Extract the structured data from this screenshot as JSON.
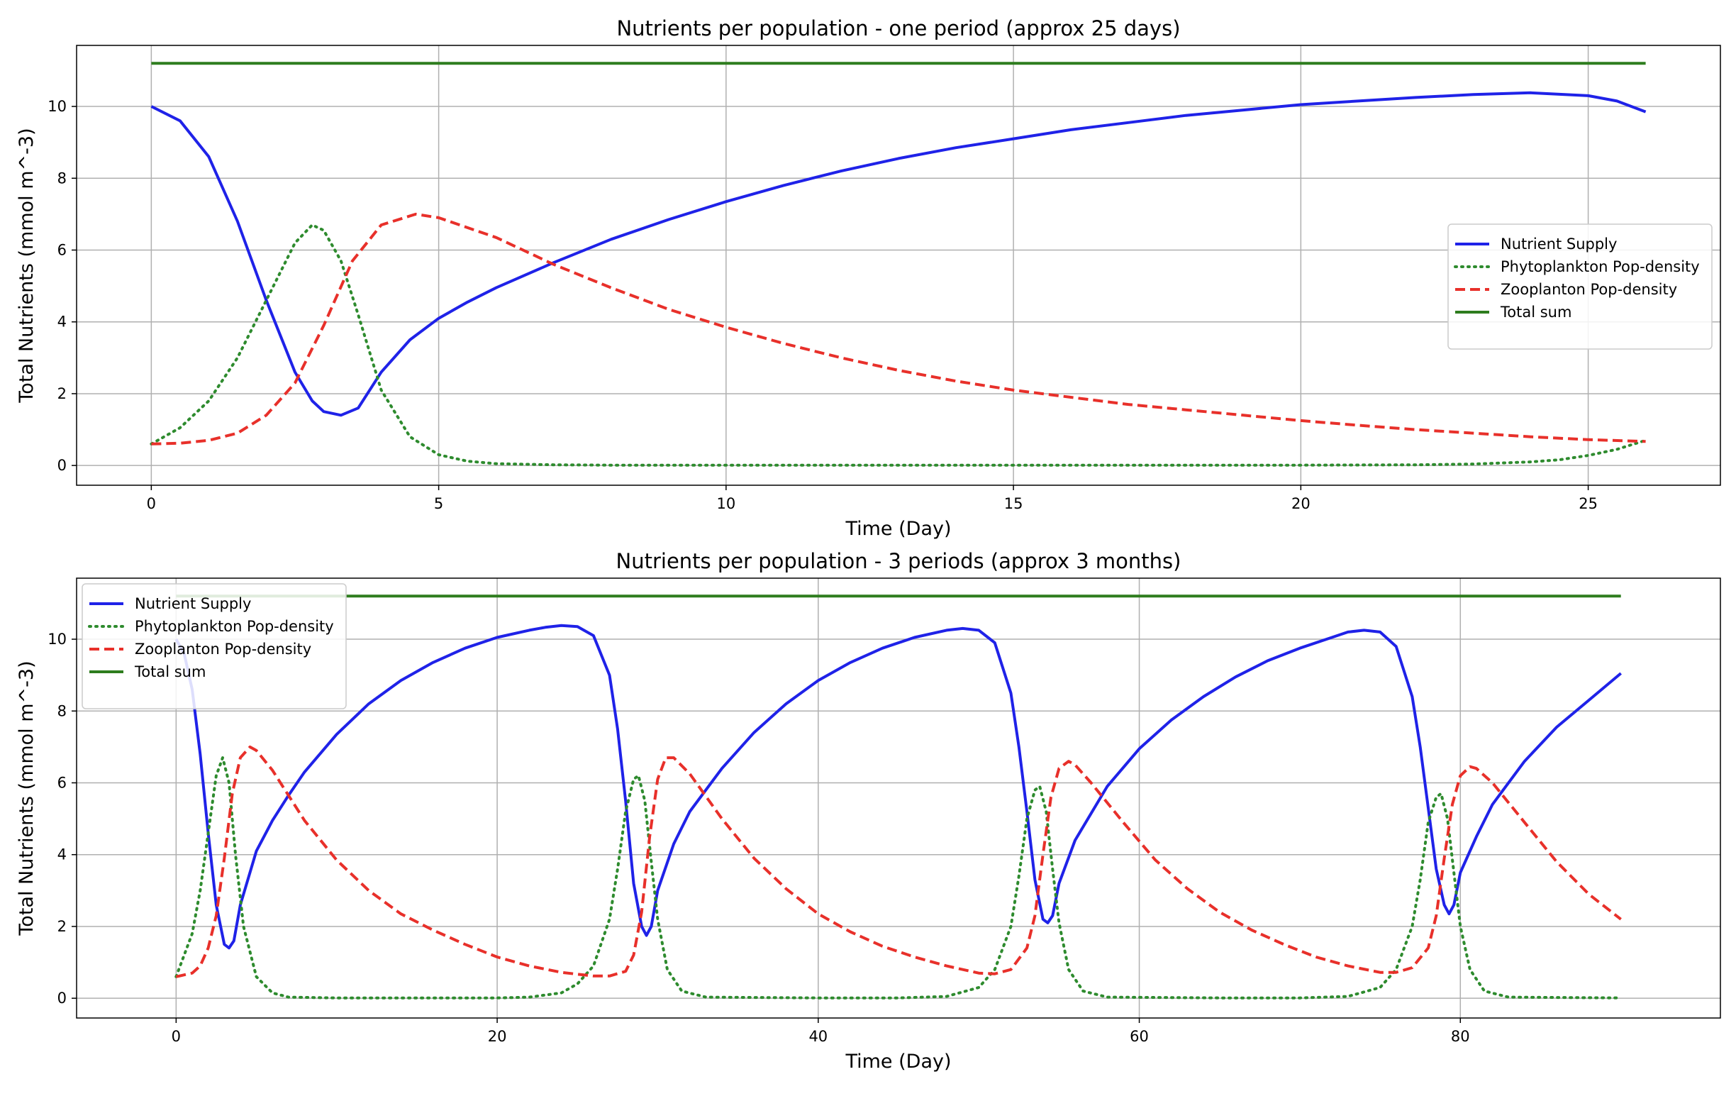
{
  "chart_data": [
    {
      "type": "line",
      "title": "Nutrients per population - one period (approx 25 days)",
      "xlabel": "Time (Day)",
      "ylabel": "Total Nutrients (mmol m^-3)",
      "xlim": [
        -1.3,
        27.3
      ],
      "ylim": [
        -0.55,
        11.7
      ],
      "xticks": [
        0,
        5,
        10,
        15,
        20,
        25
      ],
      "yticks": [
        0,
        2,
        4,
        6,
        8,
        10
      ],
      "grid": true,
      "legend_position": "center-right",
      "series": [
        {
          "name": "Nutrient Supply",
          "color": "#1f22e8",
          "style": "solid",
          "x": [
            0,
            0.5,
            1,
            1.5,
            2,
            2.5,
            2.8,
            3,
            3.3,
            3.6,
            4,
            4.5,
            5,
            5.5,
            6,
            7,
            8,
            9,
            10,
            11,
            12,
            13,
            14,
            15,
            16,
            17,
            18,
            19,
            20,
            21,
            22,
            23,
            24,
            25,
            25.5,
            26
          ],
          "y": [
            10.0,
            9.6,
            8.6,
            6.8,
            4.6,
            2.6,
            1.8,
            1.5,
            1.4,
            1.6,
            2.6,
            3.5,
            4.1,
            4.55,
            4.95,
            5.65,
            6.3,
            6.85,
            7.35,
            7.8,
            8.2,
            8.55,
            8.85,
            9.1,
            9.35,
            9.55,
            9.75,
            9.9,
            10.05,
            10.15,
            10.25,
            10.33,
            10.38,
            10.3,
            10.15,
            9.85
          ]
        },
        {
          "name": "Phytoplankton Pop-density",
          "color": "#2e8b2e",
          "style": "dotted",
          "x": [
            0,
            0.5,
            1,
            1.5,
            2,
            2.5,
            2.8,
            3,
            3.3,
            3.6,
            4,
            4.5,
            5,
            5.5,
            6,
            7,
            8,
            10,
            15,
            20,
            22,
            23,
            24,
            24.5,
            25,
            25.5,
            26
          ],
          "y": [
            0.6,
            1.05,
            1.8,
            3.0,
            4.6,
            6.2,
            6.7,
            6.55,
            5.7,
            4.2,
            2.1,
            0.8,
            0.3,
            0.12,
            0.05,
            0.02,
            0.01,
            0.01,
            0.01,
            0.01,
            0.02,
            0.04,
            0.1,
            0.16,
            0.28,
            0.45,
            0.7
          ]
        },
        {
          "name": "Zooplanton Pop-density",
          "color": "#e8302a",
          "style": "dashed",
          "x": [
            0,
            0.5,
            1,
            1.5,
            2,
            2.5,
            3,
            3.5,
            4,
            4.6,
            5,
            6,
            7,
            8,
            9,
            10,
            11,
            12,
            13,
            14,
            15,
            16,
            17,
            18,
            19,
            20,
            21,
            22,
            23,
            24,
            25,
            26
          ],
          "y": [
            0.6,
            0.62,
            0.7,
            0.9,
            1.4,
            2.3,
            3.9,
            5.7,
            6.7,
            7.0,
            6.9,
            6.35,
            5.6,
            4.95,
            4.35,
            3.85,
            3.4,
            3.0,
            2.65,
            2.35,
            2.1,
            1.9,
            1.7,
            1.55,
            1.4,
            1.25,
            1.12,
            1.0,
            0.9,
            0.8,
            0.72,
            0.67
          ]
        },
        {
          "name": "Total sum",
          "color": "#2e7d1e",
          "style": "solid",
          "x": [
            0,
            26
          ],
          "y": [
            11.2,
            11.2
          ]
        }
      ]
    },
    {
      "type": "line",
      "title": "Nutrients per population - 3 periods (approx 3 months)",
      "xlabel": "Time (Day)",
      "ylabel": "Total Nutrients (mmol m^-3)",
      "xlim": [
        -6.2,
        96.2
      ],
      "ylim": [
        -0.55,
        11.7
      ],
      "xticks": [
        0,
        20,
        40,
        60,
        80
      ],
      "yticks": [
        0,
        2,
        4,
        6,
        8,
        10
      ],
      "grid": true,
      "legend_position": "upper-left",
      "series": [
        {
          "name": "Nutrient Supply",
          "color": "#1f22e8",
          "style": "solid",
          "x": [
            0,
            0.5,
            1,
            1.5,
            2,
            2.5,
            3,
            3.3,
            3.6,
            4,
            5,
            6,
            7,
            8,
            10,
            12,
            14,
            16,
            18,
            20,
            22,
            23,
            24,
            25,
            26,
            27,
            27.5,
            28,
            28.5,
            29,
            29.3,
            29.6,
            30,
            31,
            32,
            34,
            36,
            38,
            40,
            42,
            44,
            46,
            48,
            49,
            50,
            51,
            52,
            52.5,
            53,
            53.5,
            54,
            54.3,
            54.6,
            55,
            56,
            58,
            60,
            62,
            64,
            66,
            68,
            70,
            72,
            73,
            74,
            75,
            76,
            77,
            77.5,
            78,
            78.5,
            79,
            79.3,
            79.6,
            80,
            81,
            82,
            84,
            86,
            88,
            90
          ],
          "y": [
            10.0,
            9.6,
            8.6,
            6.8,
            4.6,
            2.6,
            1.5,
            1.4,
            1.6,
            2.6,
            4.1,
            4.95,
            5.65,
            6.3,
            7.35,
            8.2,
            8.85,
            9.35,
            9.75,
            10.05,
            10.25,
            10.33,
            10.38,
            10.35,
            10.1,
            9.0,
            7.5,
            5.5,
            3.2,
            2.0,
            1.75,
            2.0,
            3.0,
            4.3,
            5.2,
            6.4,
            7.4,
            8.2,
            8.85,
            9.35,
            9.75,
            10.05,
            10.25,
            10.3,
            10.25,
            9.9,
            8.5,
            7.0,
            5.2,
            3.3,
            2.2,
            2.1,
            2.3,
            3.2,
            4.4,
            5.9,
            6.95,
            7.75,
            8.4,
            8.95,
            9.4,
            9.75,
            10.05,
            10.2,
            10.25,
            10.2,
            9.8,
            8.4,
            7.0,
            5.3,
            3.6,
            2.6,
            2.35,
            2.6,
            3.5,
            4.5,
            5.4,
            6.6,
            7.55,
            8.3,
            9.05
          ]
        },
        {
          "name": "Phytoplankton Pop-density",
          "color": "#2e8b2e",
          "style": "dotted",
          "x": [
            0,
            1,
            1.5,
            2,
            2.5,
            2.9,
            3.3,
            3.7,
            4.2,
            5,
            6,
            7,
            10,
            20,
            22,
            24,
            25,
            26,
            27,
            27.5,
            28,
            28.5,
            28.8,
            29.2,
            29.6,
            30,
            30.6,
            31.5,
            33,
            40,
            45,
            48,
            50,
            51,
            52,
            52.5,
            53,
            53.5,
            53.8,
            54.2,
            54.6,
            55,
            55.6,
            56.5,
            58,
            65,
            70,
            73,
            75,
            76,
            77,
            77.5,
            78,
            78.5,
            78.8,
            79.2,
            79.6,
            80,
            80.6,
            81.5,
            83,
            90
          ],
          "y": [
            0.6,
            1.8,
            3.0,
            4.6,
            6.2,
            6.7,
            6.0,
            4.0,
            2.0,
            0.6,
            0.15,
            0.03,
            0.01,
            0.01,
            0.03,
            0.15,
            0.4,
            0.9,
            2.2,
            3.6,
            5.2,
            6.1,
            6.2,
            5.5,
            3.8,
            2.2,
            0.8,
            0.2,
            0.03,
            0.01,
            0.01,
            0.05,
            0.3,
            0.8,
            2.0,
            3.4,
            5.0,
            5.8,
            5.9,
            5.2,
            3.6,
            2.1,
            0.8,
            0.2,
            0.03,
            0.01,
            0.01,
            0.05,
            0.3,
            0.8,
            2.0,
            3.3,
            4.9,
            5.6,
            5.7,
            5.0,
            3.5,
            2.0,
            0.8,
            0.2,
            0.03,
            0.01
          ]
        },
        {
          "name": "Zooplanton Pop-density",
          "color": "#e8302a",
          "style": "dashed",
          "x": [
            0,
            1,
            1.5,
            2,
            2.5,
            3,
            3.5,
            4,
            4.6,
            5,
            6,
            8,
            10,
            12,
            14,
            16,
            18,
            20,
            22,
            24,
            26,
            27,
            28,
            28.5,
            29,
            29.5,
            30,
            30.5,
            31,
            32,
            34,
            36,
            38,
            40,
            42,
            44,
            46,
            48,
            50,
            51,
            52,
            53,
            53.5,
            54,
            54.5,
            55,
            55.6,
            56,
            57,
            59,
            61,
            63,
            65,
            67,
            69,
            71,
            73,
            75,
            76,
            77,
            78,
            78.5,
            79,
            79.5,
            80,
            80.6,
            81,
            82,
            84,
            86,
            88,
            90
          ],
          "y": [
            0.6,
            0.7,
            0.9,
            1.4,
            2.3,
            3.9,
            5.7,
            6.7,
            7.0,
            6.9,
            6.35,
            4.95,
            3.85,
            3.0,
            2.35,
            1.9,
            1.5,
            1.15,
            0.9,
            0.72,
            0.62,
            0.62,
            0.75,
            1.2,
            2.4,
            4.5,
            6.1,
            6.7,
            6.7,
            6.25,
            5.0,
            3.9,
            3.05,
            2.35,
            1.85,
            1.45,
            1.15,
            0.9,
            0.7,
            0.68,
            0.8,
            1.4,
            2.3,
            4.0,
            5.6,
            6.4,
            6.6,
            6.5,
            6.0,
            4.9,
            3.85,
            3.05,
            2.4,
            1.9,
            1.5,
            1.15,
            0.9,
            0.72,
            0.72,
            0.85,
            1.4,
            2.3,
            3.9,
            5.4,
            6.2,
            6.45,
            6.4,
            6.0,
            4.9,
            3.8,
            2.9,
            2.2
          ]
        },
        {
          "name": "Total sum",
          "color": "#2e7d1e",
          "style": "solid",
          "x": [
            0,
            90
          ],
          "y": [
            11.2,
            11.2
          ]
        }
      ]
    }
  ]
}
